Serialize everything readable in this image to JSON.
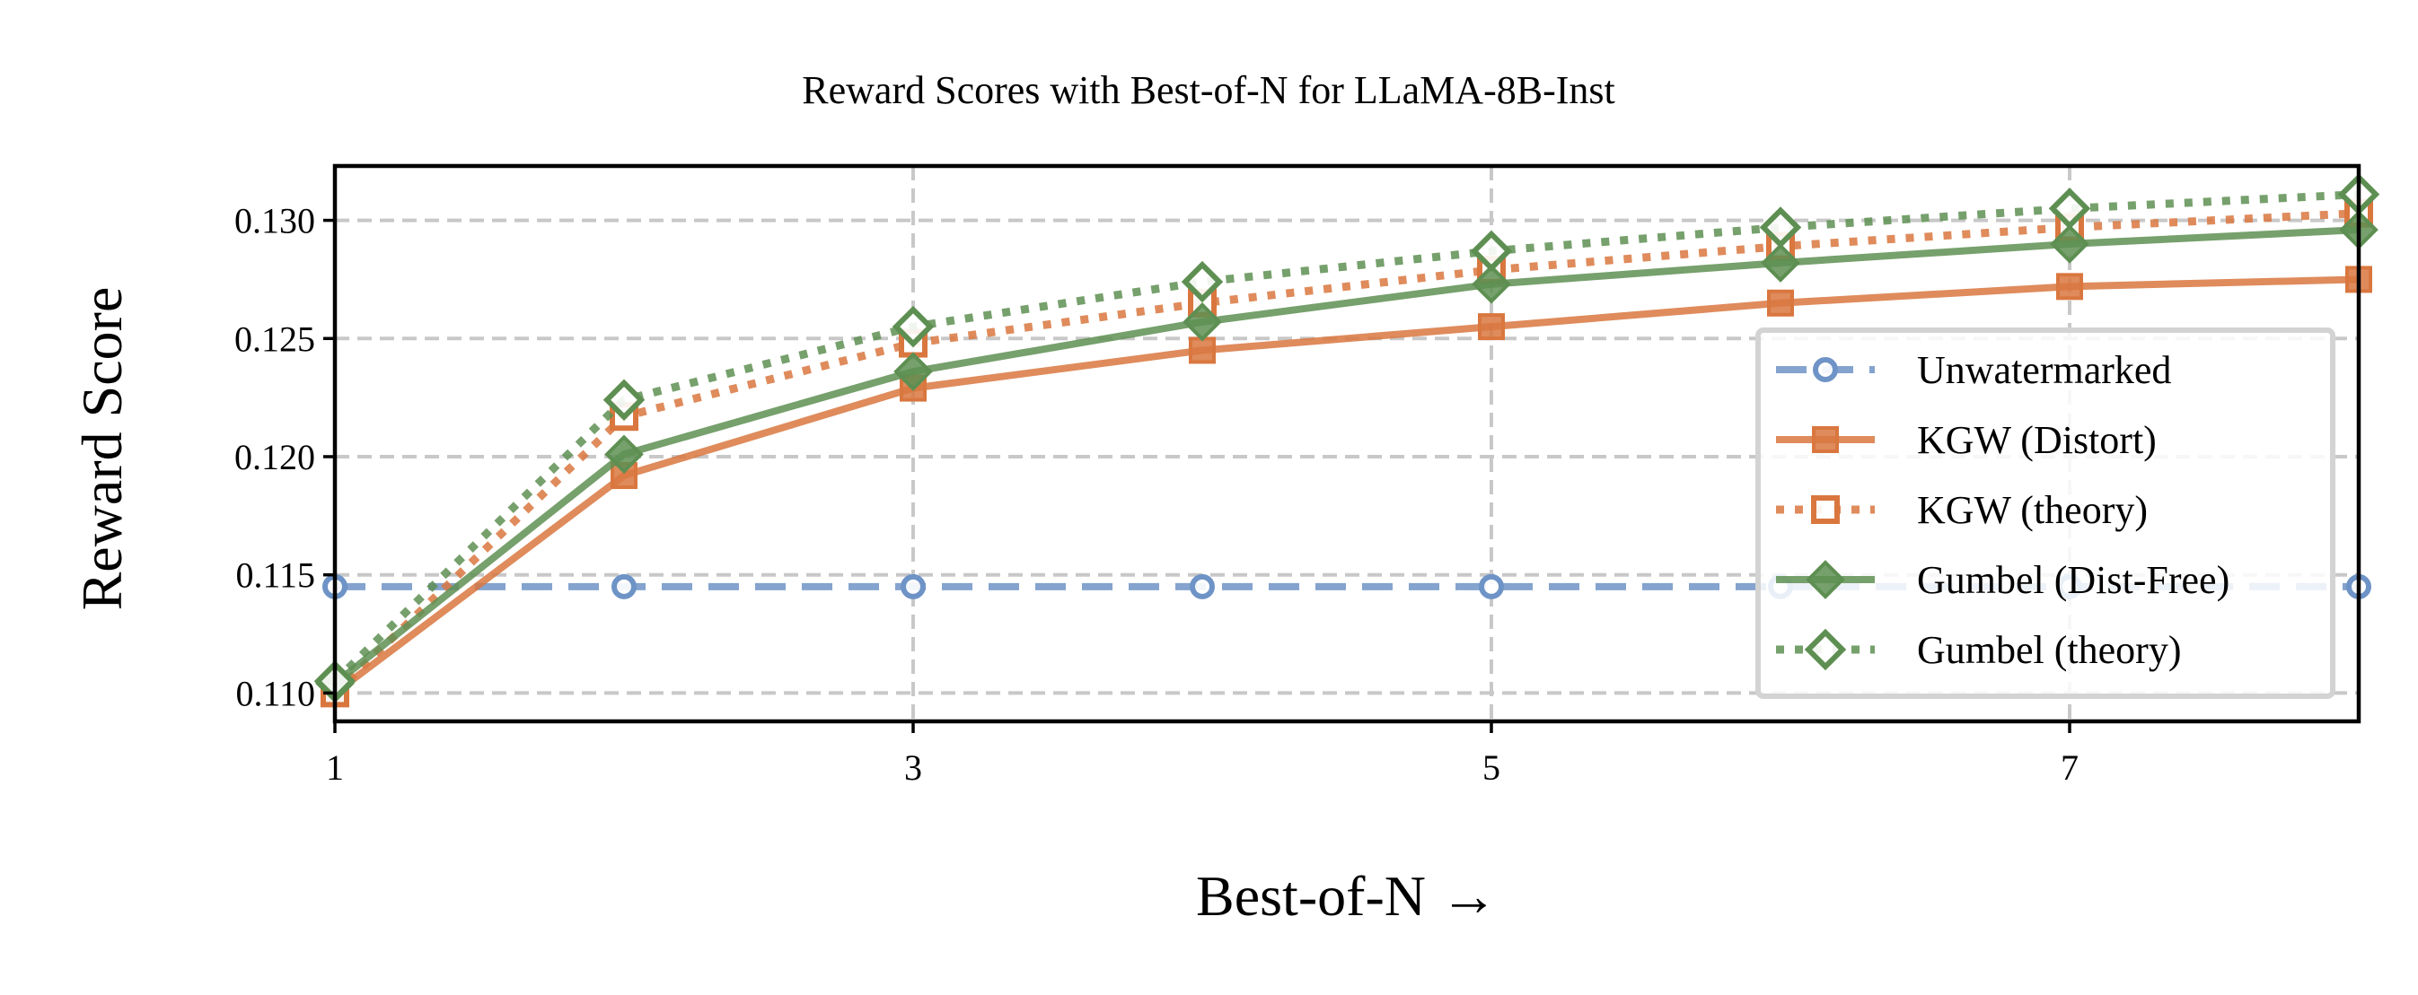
{
  "chart_data": {
    "type": "line",
    "title": "Reward Scores with Best-of-N for LLaMA-8B-Inst",
    "xlabel": "Best-of-N →",
    "ylabel": "Reward Score",
    "x": [
      1,
      2,
      3,
      4,
      5,
      6,
      7,
      8
    ],
    "xticks": [
      1,
      3,
      5,
      7
    ],
    "xlim": [
      1,
      8
    ],
    "yticks": [
      0.11,
      0.115,
      0.12,
      0.125,
      0.13
    ],
    "ytick_labels": [
      "0.110",
      "0.115",
      "0.120",
      "0.125",
      "0.130"
    ],
    "xtick_labels": [
      "1",
      "3",
      "5",
      "7"
    ],
    "ylim": [
      0.1088,
      0.1323
    ],
    "grid": true,
    "legend_position": "lower-right",
    "series": [
      {
        "name": "Unwatermarked",
        "values": [
          0.1145,
          0.1145,
          0.1145,
          0.1145,
          0.1145,
          0.1145,
          0.1145,
          0.1145
        ],
        "color": "#6e93c6",
        "style": "dashed",
        "marker": "circle-open"
      },
      {
        "name": "KGW (Distort)",
        "values": [
          0.11,
          0.1192,
          0.1229,
          0.1245,
          0.1255,
          0.1265,
          0.1272,
          0.1275
        ],
        "color": "#d9773f",
        "style": "solid",
        "marker": "square"
      },
      {
        "name": "KGW (theory)",
        "values": [
          0.11,
          0.1217,
          0.1248,
          0.1265,
          0.1279,
          0.1289,
          0.1297,
          0.1303
        ],
        "color": "#d9773f",
        "style": "dotted",
        "marker": "square-open"
      },
      {
        "name": "Gumbel (Dist-Free)",
        "values": [
          0.1104,
          0.1201,
          0.1236,
          0.1257,
          0.1273,
          0.1282,
          0.129,
          0.1296
        ],
        "color": "#5e8f52",
        "style": "solid",
        "marker": "diamond"
      },
      {
        "name": "Gumbel (theory)",
        "values": [
          0.1105,
          0.1224,
          0.1255,
          0.1274,
          0.1287,
          0.1297,
          0.1305,
          0.1311
        ],
        "color": "#5e8f52",
        "style": "dotted",
        "marker": "diamond-open"
      }
    ]
  }
}
